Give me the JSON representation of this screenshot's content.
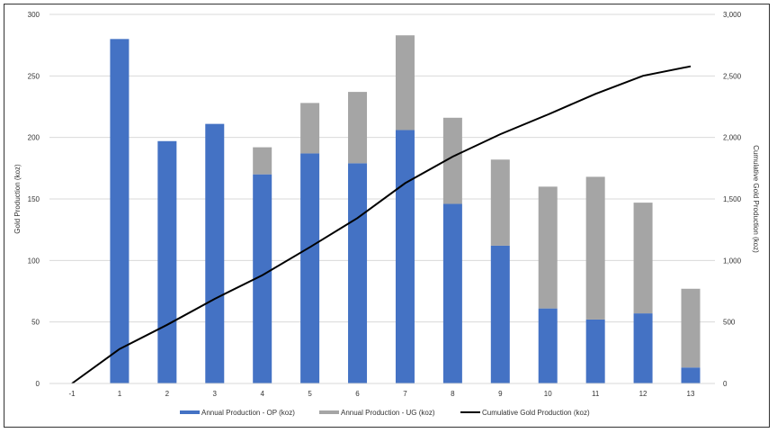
{
  "chart_data": {
    "type": "bar",
    "stacked": true,
    "categories": [
      "-1",
      "1",
      "2",
      "3",
      "4",
      "5",
      "6",
      "7",
      "8",
      "9",
      "10",
      "11",
      "12",
      "13"
    ],
    "series": [
      {
        "name": "Annual Production - OP (koz)",
        "type": "bar",
        "axis": "left",
        "color": "#4472C4",
        "values": [
          0,
          280,
          197,
          211,
          170,
          187,
          179,
          206,
          146,
          112,
          61,
          52,
          57,
          13
        ]
      },
      {
        "name": "Annual Production - UG (koz)",
        "type": "bar",
        "axis": "left",
        "color": "#A5A5A5",
        "values": [
          0,
          0,
          0,
          0,
          22,
          41,
          58,
          77,
          70,
          70,
          99,
          116,
          90,
          64
        ]
      },
      {
        "name": "Cumulative Gold Production (koz)",
        "type": "line",
        "axis": "right",
        "color": "#000000",
        "values": [
          0,
          280,
          477,
          688,
          880,
          1108,
          1345,
          1628,
          1844,
          2026,
          2186,
          2354,
          2501,
          2578
        ]
      }
    ],
    "ylabel": "Gold Production (koz)",
    "y2label": "Cumulative Gold Production (koz)",
    "ylim": [
      0,
      300
    ],
    "y2lim": [
      0,
      3000
    ],
    "yticks": [
      "0",
      "50",
      "100",
      "150",
      "200",
      "250",
      "300"
    ],
    "y2ticks": [
      "0",
      "500",
      "1,000",
      "1,500",
      "2,000",
      "2,500",
      "3,000"
    ],
    "grid": true,
    "legend": "bottom"
  }
}
